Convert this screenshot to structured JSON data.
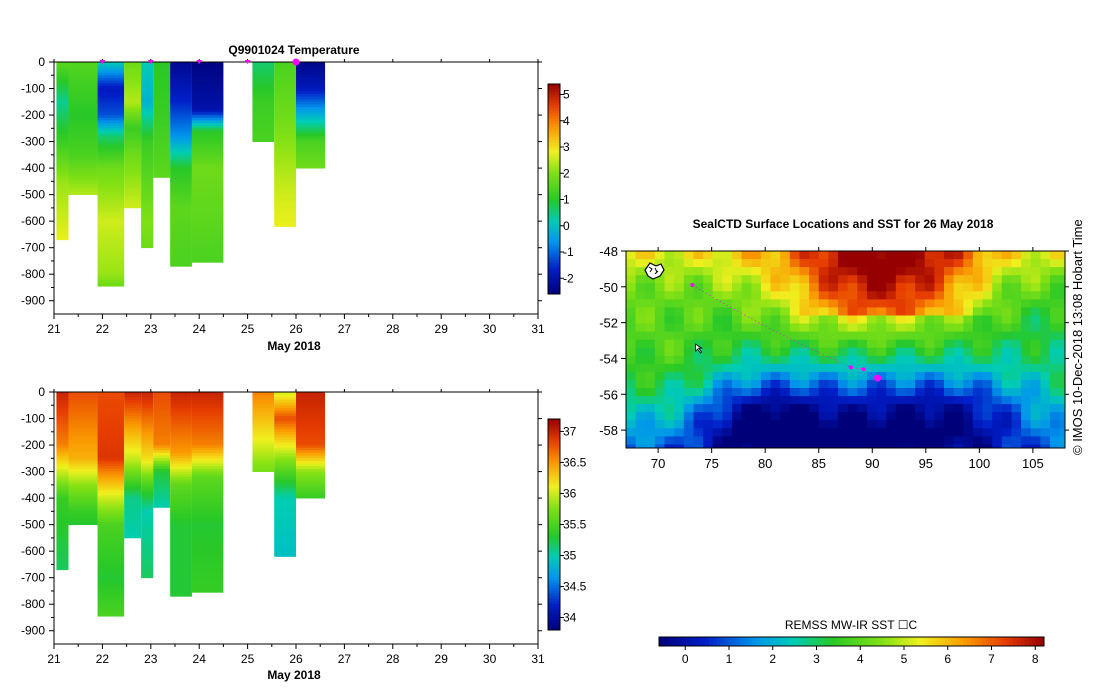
{
  "chart_data": [
    {
      "type": "heatmap",
      "title": "Q9901024  Temperature",
      "xlabel": "May 2018",
      "ylabel": "",
      "x_ticks": [
        "21",
        "22",
        "23",
        "24",
        "25",
        "26",
        "27",
        "28",
        "29",
        "30",
        "31"
      ],
      "xlim": [
        21,
        31
      ],
      "y_ticks": [
        "0",
        "-100",
        "-200",
        "-300",
        "-400",
        "-500",
        "-600",
        "-700",
        "-800",
        "-900"
      ],
      "ylim": [
        -950,
        0
      ],
      "colorbar_ticks": [
        "-2",
        "-1",
        "0",
        "1",
        "2",
        "3",
        "4",
        "5"
      ],
      "colorbar_range": [
        -2.6,
        5.4
      ],
      "surface_markers": [
        22.0,
        23.0,
        24.0,
        25.0,
        26.0
      ],
      "profiles": [
        {
          "start": 21.05,
          "end": 21.3,
          "max_depth": 670,
          "stops": [
            [
              0,
              1.6
            ],
            [
              150,
              0.4
            ],
            [
              300,
              1.2
            ],
            [
              450,
              2.2
            ],
            [
              600,
              2.6
            ],
            [
              670,
              2.8
            ]
          ]
        },
        {
          "start": 21.3,
          "end": 21.9,
          "max_depth": 500,
          "stops": [
            [
              0,
              1.5
            ],
            [
              200,
              1.0
            ],
            [
              350,
              1.4
            ],
            [
              500,
              2.4
            ]
          ]
        },
        {
          "start": 21.9,
          "end": 22.45,
          "max_depth": 845,
          "stops": [
            [
              0,
              0.2
            ],
            [
              100,
              -1.8
            ],
            [
              200,
              -1.2
            ],
            [
              280,
              0.6
            ],
            [
              400,
              1.8
            ],
            [
              600,
              2.6
            ],
            [
              800,
              2.2
            ],
            [
              845,
              1.8
            ]
          ]
        },
        {
          "start": 22.45,
          "end": 22.8,
          "max_depth": 550,
          "stops": [
            [
              0,
              1.8
            ],
            [
              150,
              2.4
            ],
            [
              250,
              1.2
            ],
            [
              350,
              1.8
            ],
            [
              450,
              2.2
            ],
            [
              550,
              2.6
            ]
          ]
        },
        {
          "start": 22.8,
          "end": 23.05,
          "max_depth": 700,
          "stops": [
            [
              0,
              0.2
            ],
            [
              150,
              -0.2
            ],
            [
              300,
              1.2
            ],
            [
              450,
              1.6
            ],
            [
              600,
              2.0
            ],
            [
              700,
              1.8
            ]
          ]
        },
        {
          "start": 23.05,
          "end": 23.4,
          "max_depth": 435,
          "stops": [
            [
              0,
              1.0
            ],
            [
              200,
              1.2
            ],
            [
              435,
              1.6
            ]
          ]
        },
        {
          "start": 23.4,
          "end": 23.85,
          "max_depth": 770,
          "stops": [
            [
              0,
              -2.3
            ],
            [
              150,
              -1.6
            ],
            [
              280,
              -0.6
            ],
            [
              400,
              1.0
            ],
            [
              550,
              1.6
            ],
            [
              770,
              1.4
            ]
          ]
        },
        {
          "start": 23.85,
          "end": 24.5,
          "max_depth": 755,
          "stops": [
            [
              0,
              -2.5
            ],
            [
              180,
              -2.0
            ],
            [
              260,
              1.0
            ],
            [
              400,
              1.8
            ],
            [
              600,
              1.6
            ],
            [
              755,
              1.4
            ]
          ]
        },
        {
          "start": 25.1,
          "end": 25.55,
          "max_depth": 300,
          "stops": [
            [
              0,
              0.6
            ],
            [
              150,
              1.2
            ],
            [
              300,
              1.4
            ]
          ]
        },
        {
          "start": 25.55,
          "end": 26.0,
          "max_depth": 620,
          "stops": [
            [
              0,
              1.4
            ],
            [
              200,
              1.8
            ],
            [
              350,
              2.2
            ],
            [
              500,
              2.6
            ],
            [
              620,
              2.8
            ]
          ]
        },
        {
          "start": 26.0,
          "end": 26.6,
          "max_depth": 400,
          "stops": [
            [
              0,
              -2.4
            ],
            [
              100,
              -1.8
            ],
            [
              200,
              -0.2
            ],
            [
              300,
              1.4
            ],
            [
              400,
              1.8
            ]
          ]
        }
      ]
    },
    {
      "type": "heatmap",
      "title": "",
      "xlabel": "May 2018",
      "ylabel": "",
      "x_ticks": [
        "21",
        "22",
        "23",
        "24",
        "25",
        "26",
        "27",
        "28",
        "29",
        "30",
        "31"
      ],
      "xlim": [
        21,
        31
      ],
      "y_ticks": [
        "0",
        "-100",
        "-200",
        "-300",
        "-400",
        "-500",
        "-600",
        "-700",
        "-800",
        "-900"
      ],
      "ylim": [
        -950,
        0
      ],
      "colorbar_ticks": [
        "34",
        "34.5",
        "35",
        "35.5",
        "36",
        "36.5",
        "37"
      ],
      "colorbar_range": [
        33.8,
        37.2
      ],
      "profiles": [
        {
          "start": 21.05,
          "end": 21.3,
          "max_depth": 670,
          "stops": [
            [
              0,
              37.0
            ],
            [
              200,
              36.6
            ],
            [
              300,
              36.0
            ],
            [
              400,
              35.4
            ],
            [
              670,
              35.2
            ]
          ]
        },
        {
          "start": 21.3,
          "end": 21.9,
          "max_depth": 500,
          "stops": [
            [
              0,
              36.8
            ],
            [
              250,
              36.4
            ],
            [
              350,
              35.8
            ],
            [
              450,
              35.4
            ],
            [
              500,
              35.3
            ]
          ]
        },
        {
          "start": 21.9,
          "end": 22.45,
          "max_depth": 845,
          "stops": [
            [
              0,
              36.8
            ],
            [
              250,
              36.9
            ],
            [
              400,
              36.0
            ],
            [
              500,
              35.5
            ],
            [
              700,
              35.3
            ],
            [
              845,
              35.5
            ]
          ]
        },
        {
          "start": 22.45,
          "end": 22.8,
          "max_depth": 550,
          "stops": [
            [
              0,
              37.0
            ],
            [
              250,
              36.0
            ],
            [
              400,
              35.1
            ],
            [
              550,
              35.0
            ]
          ]
        },
        {
          "start": 22.8,
          "end": 23.05,
          "max_depth": 700,
          "stops": [
            [
              0,
              37.0
            ],
            [
              250,
              36.2
            ],
            [
              350,
              35.5
            ],
            [
              450,
              35.0
            ],
            [
              700,
              35.2
            ]
          ]
        },
        {
          "start": 23.05,
          "end": 23.4,
          "max_depth": 435,
          "stops": [
            [
              0,
              36.8
            ],
            [
              200,
              36.6
            ],
            [
              300,
              35.3
            ],
            [
              435,
              35.0
            ]
          ]
        },
        {
          "start": 23.4,
          "end": 23.85,
          "max_depth": 770,
          "stops": [
            [
              0,
              37.0
            ],
            [
              230,
              36.5
            ],
            [
              350,
              35.6
            ],
            [
              500,
              35.3
            ],
            [
              770,
              35.3
            ]
          ]
        },
        {
          "start": 23.85,
          "end": 24.5,
          "max_depth": 755,
          "stops": [
            [
              0,
              37.0
            ],
            [
              200,
              36.6
            ],
            [
              320,
              35.6
            ],
            [
              500,
              35.3
            ],
            [
              755,
              35.4
            ]
          ]
        },
        {
          "start": 25.1,
          "end": 25.55,
          "max_depth": 300,
          "stops": [
            [
              0,
              36.6
            ],
            [
              150,
              36.2
            ],
            [
              300,
              35.7
            ]
          ]
        },
        {
          "start": 25.55,
          "end": 26.0,
          "max_depth": 620,
          "stops": [
            [
              0,
              36.0
            ],
            [
              100,
              36.8
            ],
            [
              250,
              35.8
            ],
            [
              400,
              35.0
            ],
            [
              620,
              34.9
            ]
          ]
        },
        {
          "start": 26.0,
          "end": 26.6,
          "max_depth": 400,
          "stops": [
            [
              0,
              37.0
            ],
            [
              200,
              36.8
            ],
            [
              300,
              35.8
            ],
            [
              400,
              35.4
            ]
          ]
        }
      ]
    },
    {
      "type": "heatmap",
      "title": "SealCTD Surface Locations and SST for 26 May 2018",
      "xlabel": "",
      "ylabel": "",
      "x_ticks": [
        "70",
        "75",
        "80",
        "85",
        "90",
        "95",
        "100",
        "105"
      ],
      "xlim": [
        67,
        108
      ],
      "y_ticks": [
        "-48",
        "-50",
        "-52",
        "-54",
        "-56",
        "-58"
      ],
      "ylim": [
        -59,
        -48
      ],
      "colorbar_label": "REMSS MW-IR SST ☐C",
      "colorbar_ticks": [
        "0",
        "1",
        "2",
        "3",
        "4",
        "5",
        "6",
        "7",
        "8"
      ],
      "colorbar_range": [
        -0.6,
        8.2
      ],
      "track": [
        [
          73.2,
          -49.9
        ],
        [
          76,
          -50.9
        ],
        [
          80,
          -52.2
        ],
        [
          84,
          -53.4
        ],
        [
          88,
          -54.5
        ],
        [
          89.2,
          -54.6
        ],
        [
          90.5,
          -55.1
        ]
      ],
      "track_markers": [
        [
          73.2,
          -49.9
        ],
        [
          88,
          -54.5
        ],
        [
          89.2,
          -54.6
        ],
        [
          90.5,
          -55.1
        ]
      ],
      "current_location": [
        90.5,
        -55.1
      ],
      "pointer_location": [
        73.5,
        -53.2
      ]
    }
  ],
  "credit": "©  IMOS 10-Dec-2018 13:08 Hobart Time"
}
